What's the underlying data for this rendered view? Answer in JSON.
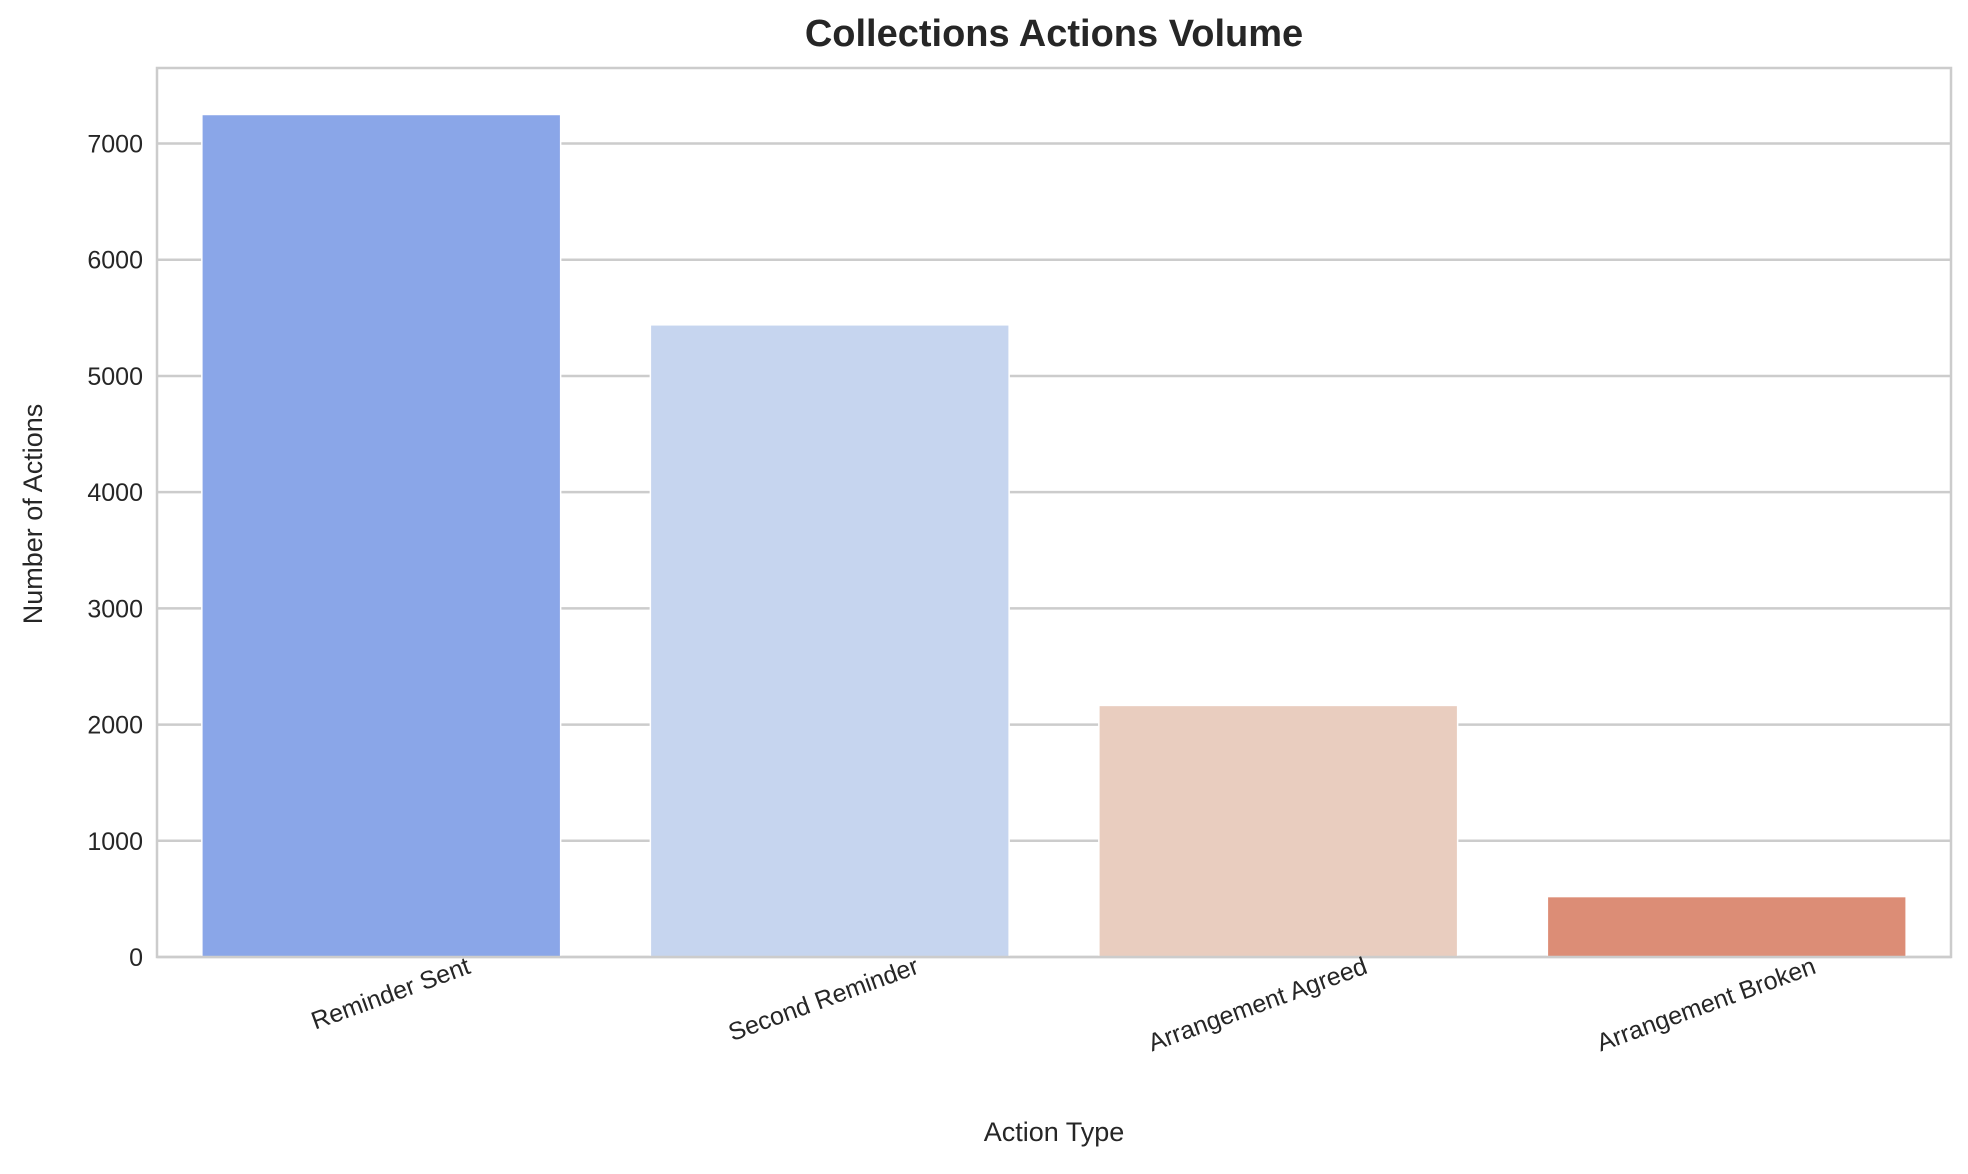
{
  "chart_data": {
    "type": "bar",
    "title": "Collections Actions Volume",
    "xlabel": "Action Type",
    "ylabel": "Number of Actions",
    "categories": [
      "Reminder Sent",
      "Second Reminder",
      "Arrangement Agreed",
      "Arrangement Broken"
    ],
    "values": [
      7250,
      5440,
      2165,
      520
    ],
    "colors": [
      "#8aa6e8",
      "#c6d5ef",
      "#e9cdbf",
      "#dc8d76"
    ],
    "ylim": [
      0,
      7650
    ],
    "yticks": [
      0,
      1000,
      2000,
      3000,
      4000,
      5000,
      6000,
      7000
    ],
    "grid": "y",
    "legend": "none"
  }
}
